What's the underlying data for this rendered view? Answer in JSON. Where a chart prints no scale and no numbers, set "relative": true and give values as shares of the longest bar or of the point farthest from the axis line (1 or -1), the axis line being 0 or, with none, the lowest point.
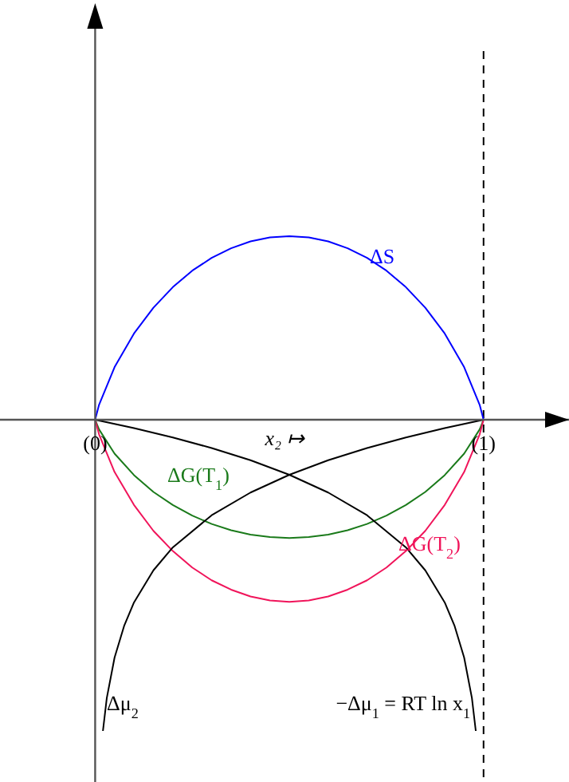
{
  "chart_data": {
    "type": "line",
    "relative": true,
    "xlabel": "x₂ ↦",
    "xlim": [
      -0.245,
      1.22
    ],
    "xticks": [
      {
        "value": 0,
        "label": "(0)"
      },
      {
        "value": 1,
        "label": "(1)"
      }
    ],
    "legend": false,
    "grid": false,
    "ref_lines": [
      {
        "axis": "x",
        "value": 1,
        "line_style": "dashed",
        "color": "#000000"
      }
    ],
    "series": [
      {
        "name": "ΔS",
        "color": "#0000ff",
        "x": [
          0,
          0.01,
          0.05,
          0.1,
          0.15,
          0.2,
          0.25,
          0.3,
          0.35,
          0.4,
          0.45,
          0.5,
          0.55,
          0.6,
          0.65,
          0.7,
          0.75,
          0.8,
          0.85,
          0.9,
          0.95,
          0.99,
          1
        ],
        "values": [
          0,
          0.048,
          0.169,
          0.277,
          0.36,
          0.426,
          0.479,
          0.52,
          0.551,
          0.573,
          0.586,
          0.59,
          0.586,
          0.573,
          0.551,
          0.52,
          0.479,
          0.426,
          0.36,
          0.277,
          0.169,
          0.048,
          0
        ]
      },
      {
        "name": "ΔG(T$_{1}$)",
        "color": "#1a7a1a",
        "x": [
          0,
          0.01,
          0.05,
          0.1,
          0.15,
          0.2,
          0.25,
          0.3,
          0.35,
          0.4,
          0.45,
          0.5,
          0.55,
          0.6,
          0.65,
          0.7,
          0.75,
          0.8,
          0.85,
          0.9,
          0.95,
          0.99,
          1
        ],
        "values": [
          0,
          -0.031,
          -0.109,
          -0.178,
          -0.232,
          -0.274,
          -0.308,
          -0.335,
          -0.355,
          -0.369,
          -0.377,
          -0.38,
          -0.377,
          -0.369,
          -0.355,
          -0.335,
          -0.308,
          -0.274,
          -0.232,
          -0.178,
          -0.109,
          -0.031,
          0
        ]
      },
      {
        "name": "ΔG(T$_{2}$)",
        "color": "#f0145a",
        "x": [
          0,
          0.01,
          0.05,
          0.1,
          0.15,
          0.2,
          0.25,
          0.3,
          0.35,
          0.4,
          0.45,
          0.5,
          0.55,
          0.6,
          0.65,
          0.7,
          0.75,
          0.8,
          0.85,
          0.9,
          0.95,
          0.99,
          1
        ],
        "values": [
          0,
          -0.047,
          -0.168,
          -0.274,
          -0.357,
          -0.422,
          -0.475,
          -0.516,
          -0.546,
          -0.568,
          -0.581,
          -0.585,
          -0.581,
          -0.568,
          -0.546,
          -0.516,
          -0.475,
          -0.422,
          -0.357,
          -0.274,
          -0.168,
          -0.047,
          0
        ]
      },
      {
        "name": "Δμ$_{2}$",
        "color": "#000000",
        "x": [
          0.02,
          0.03,
          0.05,
          0.075,
          0.1,
          0.15,
          0.2,
          0.3,
          0.4,
          0.5,
          0.6,
          0.7,
          0.8,
          0.9,
          1
        ],
        "values": [
          -1,
          -0.894,
          -0.764,
          -0.661,
          -0.587,
          -0.484,
          -0.41,
          -0.307,
          -0.234,
          -0.177,
          -0.13,
          -0.091,
          -0.057,
          -0.027,
          0
        ]
      },
      {
        "name": "−Δμ$_{1}$ = RT ln x$_{1}$",
        "color": "#000000",
        "x": [
          0,
          0.1,
          0.2,
          0.3,
          0.4,
          0.5,
          0.6,
          0.7,
          0.8,
          0.85,
          0.9,
          0.925,
          0.95,
          0.97,
          0.98
        ],
        "values": [
          0,
          -0.027,
          -0.057,
          -0.091,
          -0.13,
          -0.177,
          -0.234,
          -0.307,
          -0.41,
          -0.484,
          -0.587,
          -0.661,
          -0.764,
          -0.894,
          -1
        ]
      }
    ]
  }
}
